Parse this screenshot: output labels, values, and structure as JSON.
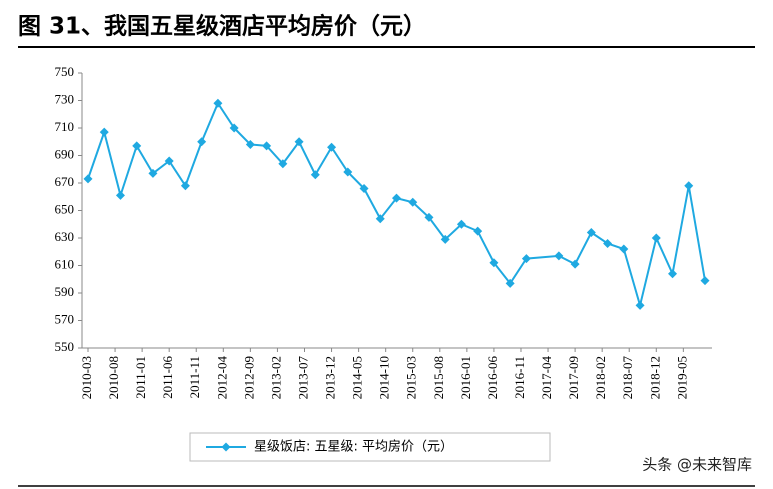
{
  "chart_data": {
    "type": "line",
    "title": "图 31、我国五星级酒店平均房价（元）",
    "x": [
      "2010-03",
      "2010-06",
      "2010-09",
      "2010-12",
      "2011-03",
      "2011-06",
      "2011-09",
      "2011-12",
      "2012-03",
      "2012-06",
      "2012-09",
      "2012-12",
      "2013-03",
      "2013-06",
      "2013-09",
      "2013-12",
      "2014-03",
      "2014-06",
      "2014-09",
      "2014-12",
      "2015-03",
      "2015-06",
      "2015-09",
      "2015-12",
      "2016-03",
      "2016-06",
      "2016-09",
      "2016-12",
      "2017-06",
      "2017-09",
      "2017-12",
      "2018-03",
      "2018-06",
      "2018-09",
      "2018-12",
      "2019-03",
      "2019-06",
      "2019-09"
    ],
    "series": [
      {
        "name": "星级饭店: 五星级: 平均房价（元）",
        "color": "#1fa9e1",
        "values": [
          673,
          707,
          661,
          697,
          677,
          686,
          668,
          700,
          728,
          710,
          698,
          697,
          684,
          700,
          676,
          696,
          678,
          666,
          644,
          659,
          656,
          645,
          629,
          640,
          635,
          612,
          597,
          615,
          617,
          611,
          634,
          626,
          622,
          581,
          630,
          604,
          668,
          599
        ]
      }
    ],
    "xlim": [
      "2010-03",
      "2019-09"
    ],
    "xticks": [
      "2010-03",
      "2010-08",
      "2011-01",
      "2011-06",
      "2011-11",
      "2012-04",
      "2012-09",
      "2013-02",
      "2013-07",
      "2013-12",
      "2014-05",
      "2014-10",
      "2015-03",
      "2015-08",
      "2016-01",
      "2016-06",
      "2016-11",
      "2017-04",
      "2017-09",
      "2018-02",
      "2018-07",
      "2018-12",
      "2019-05"
    ],
    "ylim": [
      550,
      750
    ],
    "yticks": [
      550,
      570,
      590,
      610,
      630,
      650,
      670,
      690,
      710,
      730,
      750
    ],
    "watermark": "头条 @未来智库"
  }
}
